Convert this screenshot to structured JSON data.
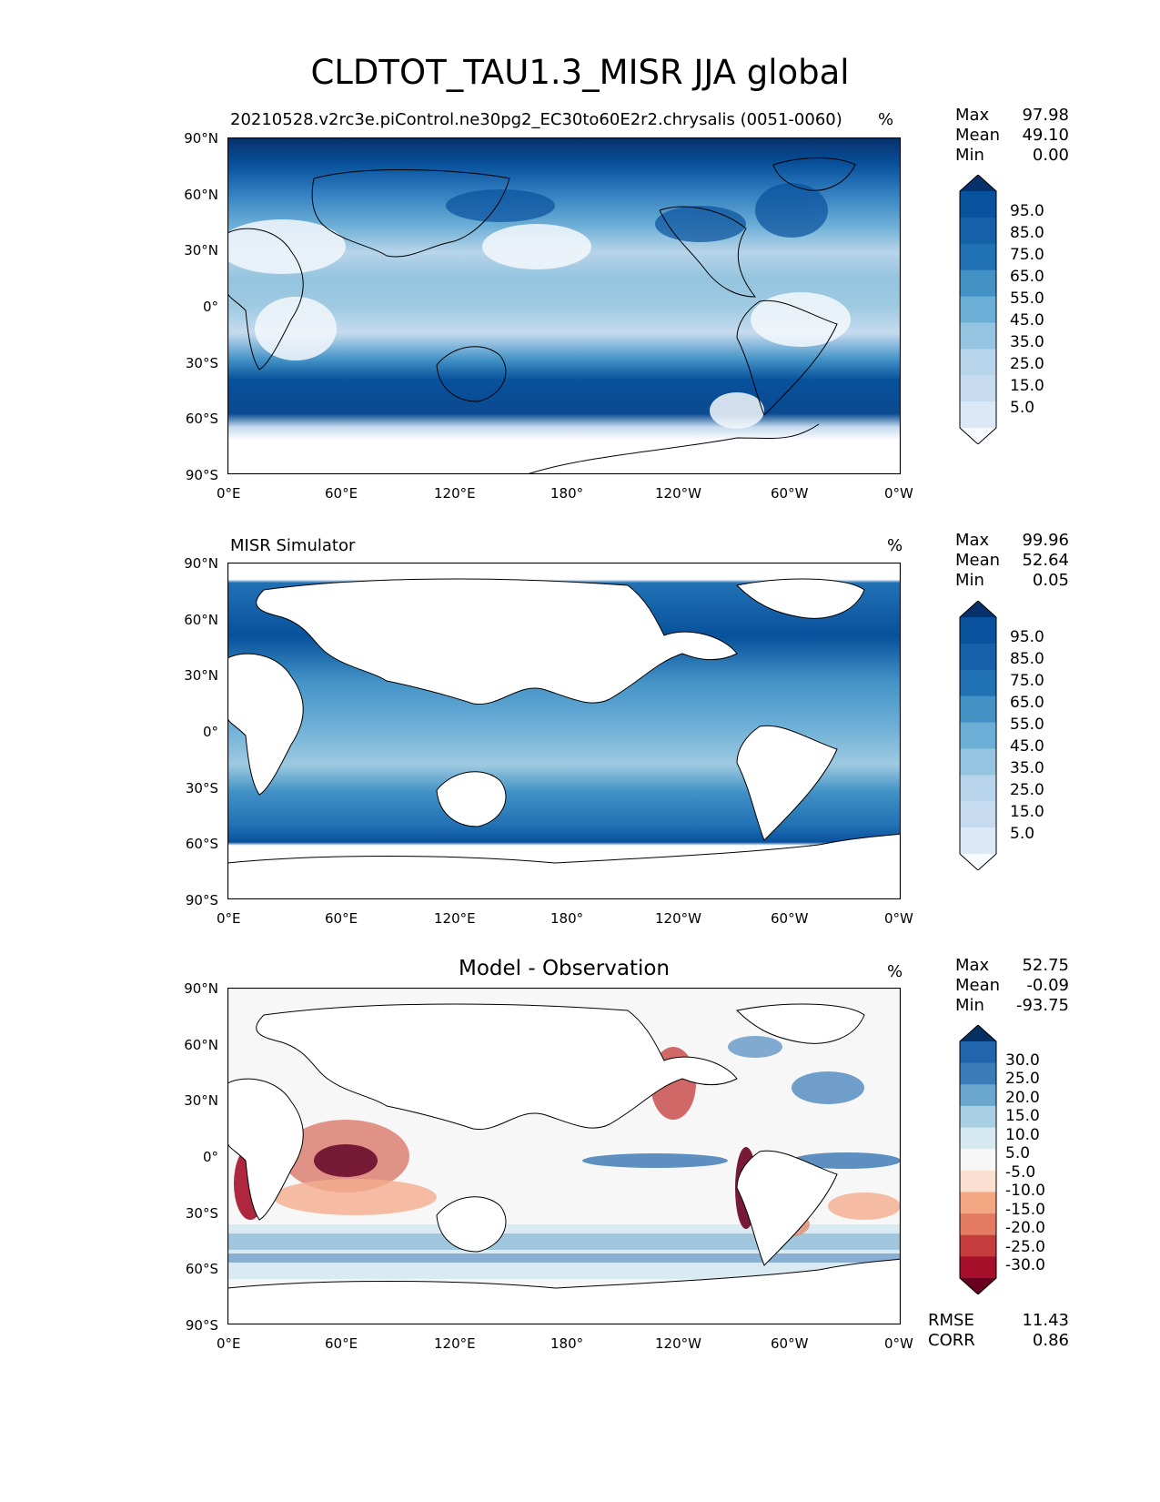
{
  "figure": {
    "title": "CLDTOT_TAU1.3_MISR JJA global"
  },
  "map_axes": {
    "lat_ticks": [
      "90°N",
      "60°N",
      "30°N",
      "0°",
      "30°S",
      "60°S",
      "90°S"
    ],
    "lon_ticks": [
      "0°E",
      "60°E",
      "120°E",
      "180°",
      "120°W",
      "60°W",
      "0°W"
    ]
  },
  "panels": [
    {
      "id": "model",
      "title": "20210528.v2rc3e.piControl.ne30pg2_EC30to60E2r2.chrysalis (0051-0060)",
      "title_style": "left",
      "unit": "%",
      "stats": [
        {
          "label": "Max",
          "value": "97.98"
        },
        {
          "label": "Mean",
          "value": "49.10"
        },
        {
          "label": "Min",
          "value": "0.00"
        }
      ],
      "colorbar": {
        "labels": [
          "95.0",
          "85.0",
          "75.0",
          "65.0",
          "55.0",
          "45.0",
          "35.0",
          "25.0",
          "15.0",
          "5.0"
        ],
        "colors": [
          "#08306b",
          "#08519c",
          "#1561a9",
          "#2171b5",
          "#4292c6",
          "#6baed6",
          "#94c4df",
          "#b7d4ea",
          "#c6dbef",
          "#dbe9f6",
          "#f7fbff"
        ]
      }
    },
    {
      "id": "obs",
      "title": "MISR Simulator",
      "title_style": "left",
      "unit": "%",
      "stats": [
        {
          "label": "Max",
          "value": "99.96"
        },
        {
          "label": "Mean",
          "value": "52.64"
        },
        {
          "label": "Min",
          "value": "0.05"
        }
      ],
      "colorbar": {
        "labels": [
          "95.0",
          "85.0",
          "75.0",
          "65.0",
          "55.0",
          "45.0",
          "35.0",
          "25.0",
          "15.0",
          "5.0"
        ],
        "colors": [
          "#08306b",
          "#08519c",
          "#1561a9",
          "#2171b5",
          "#4292c6",
          "#6baed6",
          "#94c4df",
          "#b7d4ea",
          "#c6dbef",
          "#dbe9f6",
          "#f7fbff"
        ]
      }
    },
    {
      "id": "diff",
      "title": "Model - Observation",
      "title_style": "center",
      "unit": "%",
      "stats": [
        {
          "label": "Max",
          "value": "52.75"
        },
        {
          "label": "Mean",
          "value": "-0.09"
        },
        {
          "label": "Min",
          "value": "-93.75"
        }
      ],
      "extra_stats": [
        {
          "label": "RMSE",
          "value": "11.43"
        },
        {
          "label": "CORR",
          "value": "0.86"
        }
      ],
      "colorbar": {
        "labels": [
          "30.0",
          "25.0",
          "20.0",
          "15.0",
          "10.0",
          "5.0",
          "-5.0",
          "-10.0",
          "-15.0",
          "-20.0",
          "-25.0",
          "-30.0"
        ],
        "colors": [
          "#053061",
          "#2166ac",
          "#3a7cb8",
          "#6aa6cd",
          "#a8cfe4",
          "#d6e8f1",
          "#f7f7f7",
          "#fbe0d1",
          "#f4a582",
          "#e27b62",
          "#c43c3c",
          "#a50f2a",
          "#67001f"
        ]
      }
    }
  ]
}
